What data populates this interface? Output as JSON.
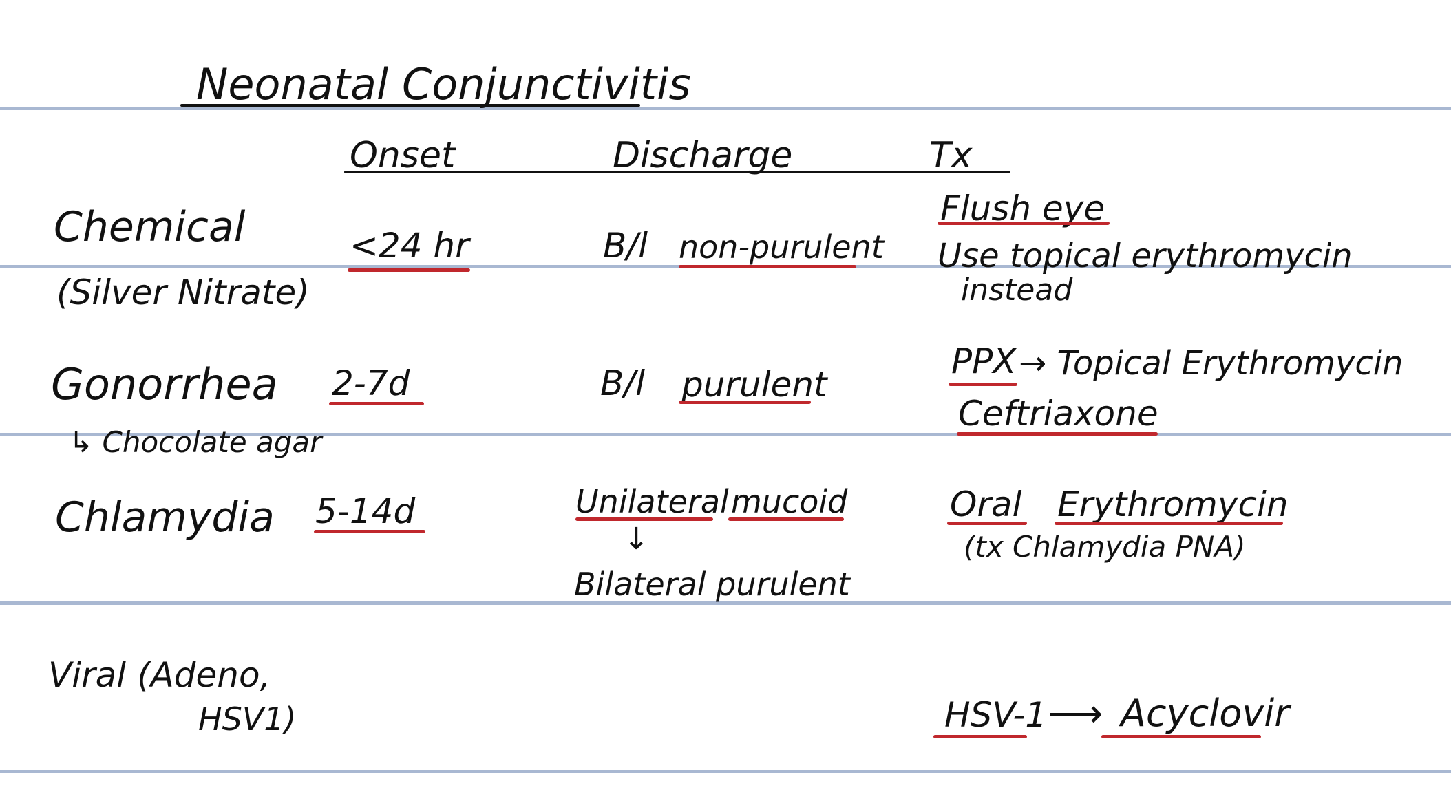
{
  "title": "Neonatal Conjunctivitis",
  "headers": {
    "onset": "Onset",
    "discharge": "Discharge",
    "tx": "Tx"
  },
  "rows": {
    "chemical": {
      "name": "Chemical",
      "sub": "(Silver Nitrate)",
      "onset": "<24 hr",
      "discharge_prefix": "B/l",
      "discharge": "non-purulent",
      "tx_1": "Flush eye",
      "tx_2": "Use topical erythromycin",
      "tx_3": "instead"
    },
    "gonorrhea": {
      "name": "Gonorrhea",
      "note": "↳ Chocolate agar",
      "onset": "2-7d",
      "discharge_prefix": "B/l",
      "discharge": "purulent",
      "tx_ppx": "PPX",
      "tx_ppx_rest": "→ Topical Erythromycin",
      "tx_2": "Ceftriaxone"
    },
    "chlamydia": {
      "name": "Chlamydia",
      "onset": "5-14d",
      "discharge_1": "Unilateral",
      "discharge_2": "mucoid",
      "arrow": "↓",
      "discharge_3": "Bilateral purulent",
      "tx_1": "Oral",
      "tx_2": "Erythromycin",
      "tx_note": "(tx Chlamydia PNA)"
    },
    "viral": {
      "name_1": "Viral (Adeno,",
      "name_2": "HSV1)",
      "tx_1": "HSV-1",
      "tx_arrow": "⟶",
      "tx_2": "Acyclovir"
    }
  },
  "colors": {
    "ink": "#111111",
    "underline_red": "#c0282d",
    "rule_blue": "#a9b8d2",
    "paper": "#ffffff"
  }
}
